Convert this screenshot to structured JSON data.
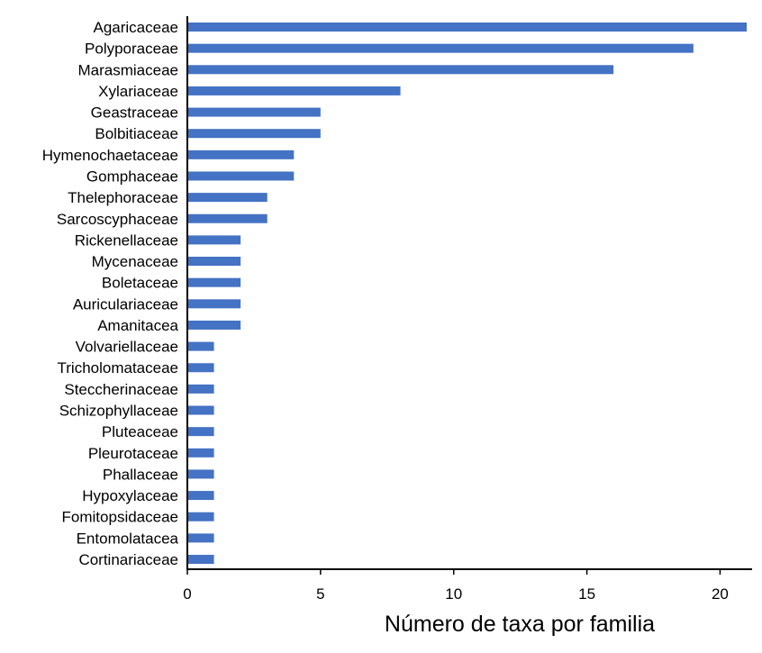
{
  "chart_data": {
    "type": "bar",
    "orientation": "horizontal",
    "title": "",
    "xlabel": "Número de taxa por familia",
    "ylabel": "",
    "xlim": [
      0,
      21
    ],
    "xticks": [
      0,
      5,
      10,
      15,
      20
    ],
    "grid": false,
    "legend": "none",
    "bar_color": "#4472C4",
    "categories": [
      "Agaricaceae",
      "Polyporaceae",
      "Marasmiaceae",
      "Xylariaceae",
      "Geastraceae",
      "Bolbitiaceae",
      "Hymenochaetaceae",
      "Gomphaceae",
      "Thelephoraceae",
      "Sarcoscyphaceae",
      "Rickenellaceae",
      "Mycenaceae",
      "Boletaceae",
      "Auriculariaceae",
      "Amanitacea",
      "Volvariellaceae",
      "Tricholomataceae",
      "Steccherinaceae",
      "Schizophyllaceae",
      "Pluteaceae",
      "Pleurotaceae",
      "Phallaceae",
      "Hypoxylaceae",
      "Fomitopsidaceae",
      "Entomolatacea",
      "Cortinariaceae"
    ],
    "values": [
      21,
      19,
      16,
      8,
      5,
      5,
      4,
      4,
      3,
      3,
      2,
      2,
      2,
      2,
      2,
      1,
      1,
      1,
      1,
      1,
      1,
      1,
      1,
      1,
      1,
      1
    ]
  }
}
